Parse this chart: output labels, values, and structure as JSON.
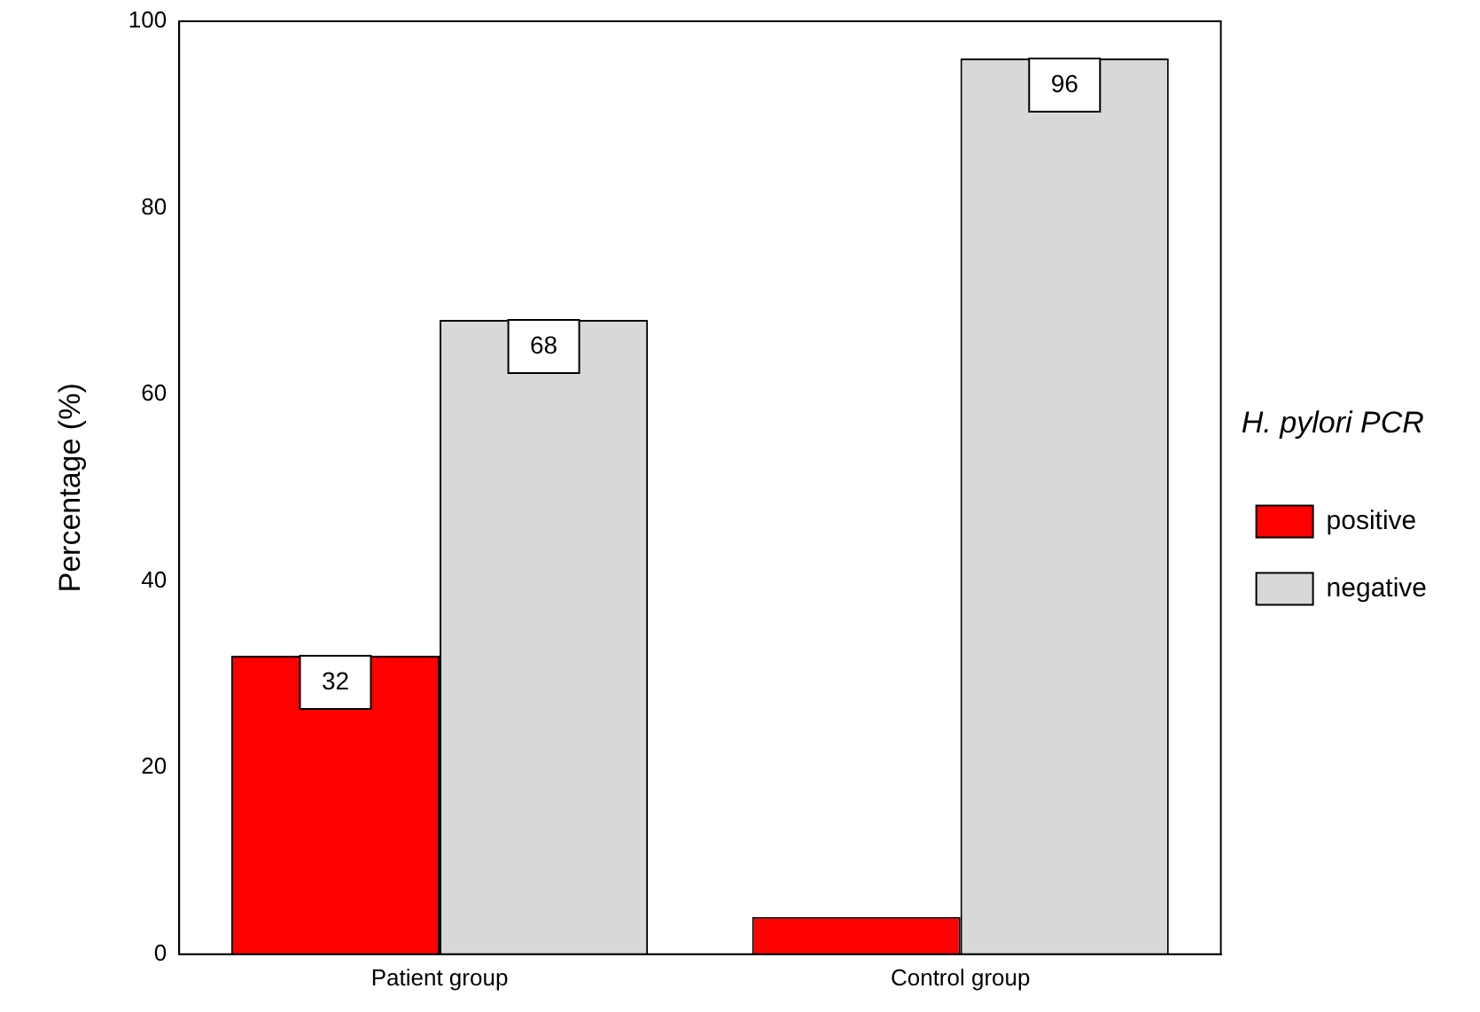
{
  "chart_data": {
    "type": "bar",
    "ylabel": "Percentage (%)",
    "legend_title": "H. pylori PCR",
    "categories": [
      "Patient group",
      "Control group"
    ],
    "series": [
      {
        "name": "positive",
        "color": "#ff0000",
        "values": [
          32,
          4
        ],
        "value_labels": [
          "32",
          null
        ]
      },
      {
        "name": "negative",
        "color": "#d8d8d8",
        "values": [
          68,
          96
        ],
        "value_labels": [
          "68",
          "96"
        ]
      }
    ],
    "ylim": [
      0,
      100
    ],
    "yticks": [
      0,
      20,
      40,
      60,
      80,
      100
    ],
    "grid": false,
    "legend": "right"
  }
}
